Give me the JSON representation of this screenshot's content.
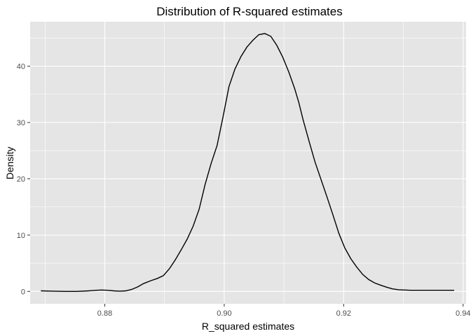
{
  "chart_data": {
    "type": "line",
    "title": "Distribution of R-squared estimates",
    "xlabel": "R_squared estimates",
    "ylabel": "Density",
    "xlim": [
      0.8675,
      0.9405
    ],
    "ylim": [
      -2.2,
      47.9
    ],
    "x_ticks": [
      0.88,
      0.9,
      0.92,
      0.94
    ],
    "x_tick_labels": [
      "0.88",
      "0.90",
      "0.92",
      "0.94"
    ],
    "y_ticks": [
      0,
      10,
      20,
      30,
      40
    ],
    "y_tick_labels": [
      "0",
      "10",
      "20",
      "30",
      "40"
    ],
    "grid": true,
    "legend": "none",
    "colors": {
      "panel_background": "#e5e5e5",
      "grid_major": "#ffffff",
      "line": "#000000",
      "tick_label": "#4d4d4d"
    },
    "series": [
      {
        "x": [
          0.8693,
          0.8713,
          0.8733,
          0.8753,
          0.8773,
          0.8785,
          0.8795,
          0.8805,
          0.8815,
          0.8825,
          0.8835,
          0.8845,
          0.8855,
          0.8865,
          0.8877,
          0.8888,
          0.8898,
          0.8908,
          0.8918,
          0.8928,
          0.8938,
          0.8948,
          0.8958,
          0.8968,
          0.8978,
          0.8988,
          0.8998,
          0.9008,
          0.9018,
          0.9028,
          0.9038,
          0.9048,
          0.9058,
          0.9068,
          0.9078,
          0.9088,
          0.9098,
          0.9108,
          0.9118,
          0.9125,
          0.9132,
          0.9142,
          0.9152,
          0.9162,
          0.9172,
          0.9182,
          0.9192,
          0.9202,
          0.9212,
          0.9222,
          0.9232,
          0.9242,
          0.9252,
          0.9262,
          0.9272,
          0.9282,
          0.9292,
          0.9302,
          0.9312,
          0.9322,
          0.9332,
          0.9342,
          0.9352,
          0.9362,
          0.9372,
          0.9385
        ],
        "values": [
          0.1,
          0.05,
          0.0,
          0.0,
          0.1,
          0.2,
          0.25,
          0.2,
          0.1,
          0.05,
          0.1,
          0.35,
          0.8,
          1.4,
          1.9,
          2.3,
          2.8,
          4.0,
          5.6,
          7.4,
          9.3,
          11.6,
          14.6,
          19.0,
          22.7,
          25.9,
          31.0,
          36.4,
          39.5,
          41.7,
          43.4,
          44.6,
          45.6,
          45.8,
          45.3,
          43.7,
          41.6,
          39.0,
          36.0,
          33.5,
          30.5,
          26.7,
          23.0,
          19.9,
          16.8,
          13.6,
          10.3,
          7.7,
          5.8,
          4.3,
          3.0,
          2.1,
          1.5,
          1.1,
          0.75,
          0.45,
          0.3,
          0.25,
          0.2,
          0.2,
          0.2,
          0.2,
          0.2,
          0.2,
          0.2,
          0.2
        ]
      }
    ]
  }
}
